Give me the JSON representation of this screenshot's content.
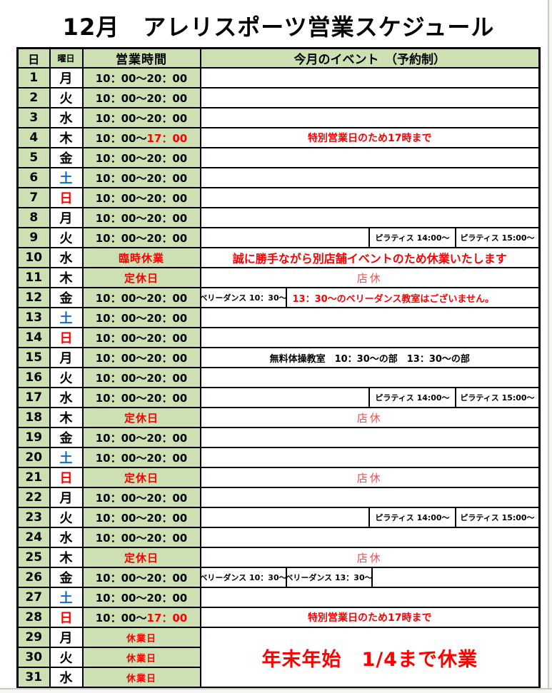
{
  "page": {
    "title": "12月　アレリスポーツ営業スケジュール"
  },
  "table": {
    "headers": {
      "day": "日",
      "weekday": "曜日",
      "hours": "営業時間",
      "events": "今月のイベント　（予約制）"
    },
    "colors": {
      "green": "#cce0b4",
      "red": "#ff0000",
      "blue": "#0f6bc5",
      "soft_red": "#ef4d4d",
      "border": "#000000",
      "page_edge": "#c9c9c9"
    },
    "rows": [
      {
        "day": "1",
        "weekday": "月",
        "weekday_color": "black",
        "hours": {
          "kind": "time",
          "text": "10：00～20：00"
        },
        "event": {
          "kind": "none"
        }
      },
      {
        "day": "2",
        "weekday": "火",
        "weekday_color": "black",
        "hours": {
          "kind": "time",
          "text": "10：00～20：00"
        },
        "event": {
          "kind": "none"
        }
      },
      {
        "day": "3",
        "weekday": "水",
        "weekday_color": "black",
        "hours": {
          "kind": "time",
          "text": "10：00～20：00"
        },
        "event": {
          "kind": "none"
        }
      },
      {
        "day": "4",
        "weekday": "木",
        "weekday_color": "black",
        "hours": {
          "kind": "time_special",
          "prefix": "10：00～",
          "red_part": "17：00"
        },
        "event": {
          "kind": "notice",
          "style": "red-bold",
          "text": "特別営業日のため17時まで"
        }
      },
      {
        "day": "5",
        "weekday": "金",
        "weekday_color": "black",
        "hours": {
          "kind": "time",
          "text": "10：00～20：00"
        },
        "event": {
          "kind": "none"
        }
      },
      {
        "day": "6",
        "weekday": "土",
        "weekday_color": "blue",
        "hours": {
          "kind": "time",
          "text": "10：00～20：00"
        },
        "event": {
          "kind": "none"
        }
      },
      {
        "day": "7",
        "weekday": "日",
        "weekday_color": "red",
        "hours": {
          "kind": "time",
          "text": "10：00～20：00"
        },
        "event": {
          "kind": "none"
        }
      },
      {
        "day": "8",
        "weekday": "月",
        "weekday_color": "black",
        "hours": {
          "kind": "time",
          "text": "10：00～20：00"
        },
        "event": {
          "kind": "none"
        }
      },
      {
        "day": "9",
        "weekday": "火",
        "weekday_color": "black",
        "hours": {
          "kind": "time",
          "text": "10：00～20：00"
        },
        "event": {
          "kind": "pilates",
          "cells": [
            "ピラティス 14:00～",
            "ピラティス 15:00～"
          ]
        }
      },
      {
        "day": "10",
        "weekday": "水",
        "weekday_color": "black",
        "hours": {
          "kind": "status",
          "text": "臨時休業"
        },
        "event": {
          "kind": "notice",
          "style": "red-bold-lg",
          "text": "誠に勝手ながら別店舗イベントのため休業いたします"
        }
      },
      {
        "day": "11",
        "weekday": "木",
        "weekday_color": "black",
        "hours": {
          "kind": "status",
          "text": "定休日"
        },
        "event": {
          "kind": "notice",
          "style": "soft-red",
          "text": "店休"
        }
      },
      {
        "day": "12",
        "weekday": "金",
        "weekday_color": "black",
        "hours": {
          "kind": "time",
          "text": "10：00～20：00"
        },
        "event": {
          "kind": "belly_note",
          "cell": "ベリーダンス 10：30～",
          "note": "13：30～のベリーダンス教室はございません。"
        }
      },
      {
        "day": "13",
        "weekday": "土",
        "weekday_color": "blue",
        "hours": {
          "kind": "time",
          "text": "10：00～20：00"
        },
        "event": {
          "kind": "none"
        }
      },
      {
        "day": "14",
        "weekday": "日",
        "weekday_color": "red",
        "hours": {
          "kind": "time",
          "text": "10：00～20：00"
        },
        "event": {
          "kind": "none"
        }
      },
      {
        "day": "15",
        "weekday": "月",
        "weekday_color": "black",
        "hours": {
          "kind": "time",
          "text": "10：00～20：00"
        },
        "event": {
          "kind": "notice",
          "style": "black-bold",
          "text": "無料体操教室　10：30～の部　13：30～の部"
        }
      },
      {
        "day": "16",
        "weekday": "火",
        "weekday_color": "black",
        "hours": {
          "kind": "time",
          "text": "10：00～20：00"
        },
        "event": {
          "kind": "none"
        }
      },
      {
        "day": "17",
        "weekday": "水",
        "weekday_color": "black",
        "hours": {
          "kind": "time",
          "text": "10：00～20：00"
        },
        "event": {
          "kind": "pilates",
          "cells": [
            "ピラティス 14:00～",
            "ピラティス 15:00～"
          ]
        }
      },
      {
        "day": "18",
        "weekday": "木",
        "weekday_color": "black",
        "hours": {
          "kind": "status",
          "text": "定休日"
        },
        "event": {
          "kind": "notice",
          "style": "soft-red",
          "text": "店休"
        }
      },
      {
        "day": "19",
        "weekday": "金",
        "weekday_color": "black",
        "hours": {
          "kind": "time",
          "text": "10：00～20：00"
        },
        "event": {
          "kind": "none"
        }
      },
      {
        "day": "20",
        "weekday": "土",
        "weekday_color": "blue",
        "hours": {
          "kind": "time",
          "text": "10：00～20：00"
        },
        "event": {
          "kind": "none"
        }
      },
      {
        "day": "21",
        "weekday": "日",
        "weekday_color": "red",
        "hours": {
          "kind": "status",
          "text": "定休日"
        },
        "event": {
          "kind": "notice",
          "style": "soft-red",
          "text": "店休"
        }
      },
      {
        "day": "22",
        "weekday": "月",
        "weekday_color": "black",
        "hours": {
          "kind": "time",
          "text": "10：00～20：00"
        },
        "event": {
          "kind": "none"
        }
      },
      {
        "day": "23",
        "weekday": "火",
        "weekday_color": "black",
        "hours": {
          "kind": "time",
          "text": "10：00～20：00"
        },
        "event": {
          "kind": "pilates",
          "cells": [
            "ピラティス 14:00～",
            "ピラティス 15:00～"
          ]
        }
      },
      {
        "day": "24",
        "weekday": "水",
        "weekday_color": "black",
        "hours": {
          "kind": "time",
          "text": "10：00～20：00"
        },
        "event": {
          "kind": "none"
        }
      },
      {
        "day": "25",
        "weekday": "木",
        "weekday_color": "black",
        "hours": {
          "kind": "status",
          "text": "定休日"
        },
        "event": {
          "kind": "notice",
          "style": "soft-red",
          "text": "店休"
        }
      },
      {
        "day": "26",
        "weekday": "金",
        "weekday_color": "black",
        "hours": {
          "kind": "time",
          "text": "10：00～20：00"
        },
        "event": {
          "kind": "belly_pair",
          "cells": [
            "ベリーダンス 10：30～",
            "ベリーダンス 13：30～"
          ]
        }
      },
      {
        "day": "27",
        "weekday": "土",
        "weekday_color": "blue",
        "hours": {
          "kind": "time",
          "text": "10：00～20：00"
        },
        "event": {
          "kind": "none"
        }
      },
      {
        "day": "28",
        "weekday": "日",
        "weekday_color": "red",
        "hours": {
          "kind": "time_special",
          "prefix": "10：00～",
          "red_part": "17：00"
        },
        "event": {
          "kind": "notice",
          "style": "red-bold",
          "text": "特別営業日のため17時まで"
        }
      },
      {
        "day": "29",
        "weekday": "月",
        "weekday_color": "black",
        "hours": {
          "kind": "status",
          "text": "休業日",
          "small": true
        },
        "event": {
          "kind": "merged_start",
          "rowspan": 3,
          "style": "red-bold-xl",
          "text": "年末年始　1/4まで休業"
        }
      },
      {
        "day": "30",
        "weekday": "火",
        "weekday_color": "black",
        "hours": {
          "kind": "status",
          "text": "休業日",
          "small": true
        },
        "event": {
          "kind": "merged_cont"
        }
      },
      {
        "day": "31",
        "weekday": "水",
        "weekday_color": "black",
        "hours": {
          "kind": "status",
          "text": "休業日",
          "small": true
        },
        "event": {
          "kind": "merged_cont"
        }
      }
    ]
  }
}
